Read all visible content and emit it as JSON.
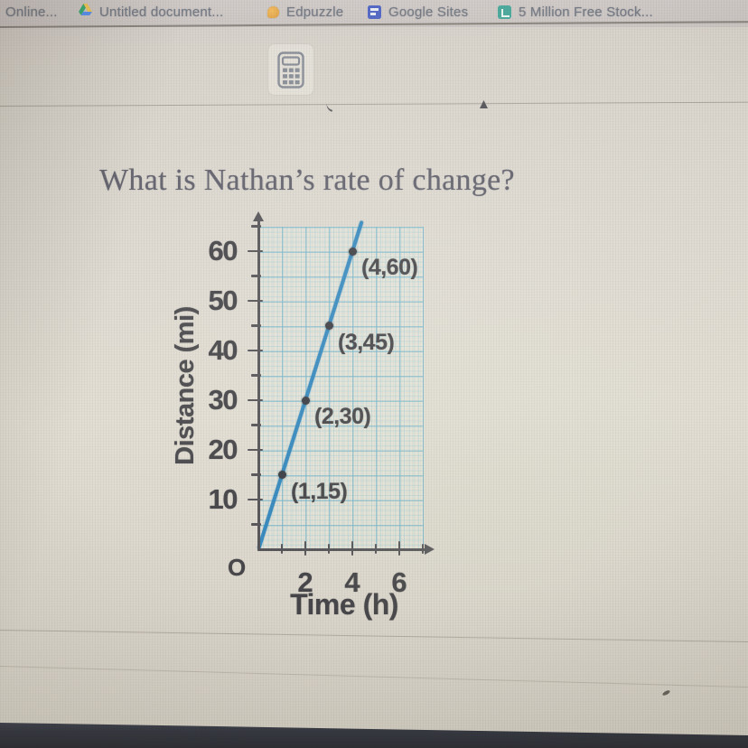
{
  "bookmarks_bar": {
    "items": [
      {
        "id": "online",
        "label": "Online...",
        "icon": null
      },
      {
        "id": "untitled-document",
        "label": "Untitled document...",
        "icon": "drive-icon"
      },
      {
        "id": "edpuzzle",
        "label": "Edpuzzle",
        "icon": "edpuzzle-icon"
      },
      {
        "id": "google-sites",
        "label": "Google Sites",
        "icon": "sites-icon"
      },
      {
        "id": "stock-photos",
        "label": "5 Million Free Stock...",
        "icon": "stock-icon"
      }
    ]
  },
  "toolbar": {
    "calculator_icon": "calculator-icon"
  },
  "question": {
    "text": "What is Nathan’s rate of change?"
  },
  "chart_data": {
    "type": "line",
    "title": "",
    "xlabel": "Time (h)",
    "ylabel": "Distance (mi)",
    "origin_label": "O",
    "x": [
      1,
      2,
      3,
      4
    ],
    "y": [
      15,
      30,
      45,
      60
    ],
    "points": [
      {
        "x": 1,
        "y": 15,
        "label": "(1,15)"
      },
      {
        "x": 2,
        "y": 30,
        "label": "(2,30)"
      },
      {
        "x": 3,
        "y": 45,
        "label": "(3,45)"
      },
      {
        "x": 4,
        "y": 60,
        "label": "(4,60)"
      }
    ],
    "slope_mi_per_h": 15,
    "x_ticks": [
      2,
      4,
      6
    ],
    "x_minor_ticks": [
      1,
      3,
      5,
      7
    ],
    "y_ticks": [
      10,
      20,
      30,
      40,
      50,
      60
    ],
    "y_minor_ticks": [
      5,
      10,
      15,
      20,
      25,
      30,
      35,
      40,
      45,
      50,
      55,
      60,
      65
    ],
    "xlim": [
      0,
      7
    ],
    "ylim": [
      0,
      66
    ],
    "grid": true,
    "legend": false,
    "line_color": "#1a7ab8",
    "grid_color": "#62acc6",
    "axis_color": "#3f3e43",
    "text_color": "#2e2e33",
    "point_color": "#20232c"
  }
}
